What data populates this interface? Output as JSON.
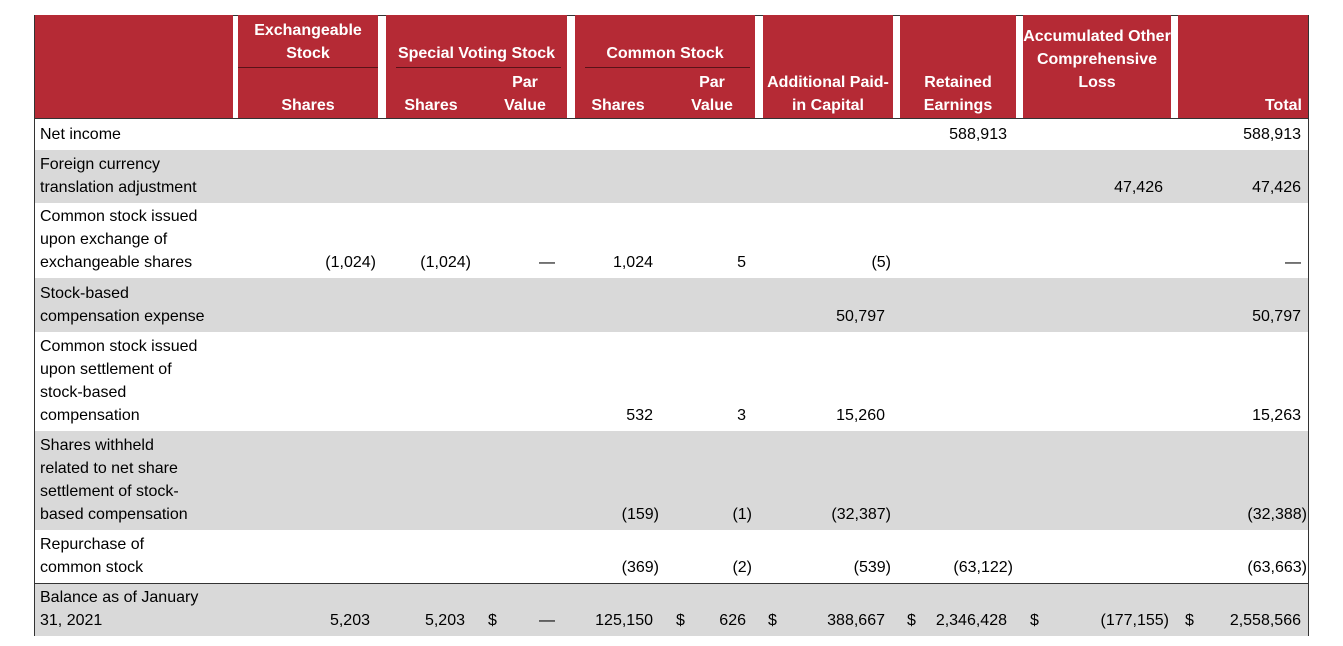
{
  "header": {
    "exchangeable_stock": "Exchangeable Stock",
    "special_voting_stock": "Special Voting Stock",
    "common_stock": "Common Stock",
    "shares": "Shares",
    "par_value": "Par Value",
    "apic": "Additional Paid-in Capital",
    "retained_earnings": "Retained Earnings",
    "aocl": "Accumulated Other Comprehensive Loss",
    "total": "Total"
  },
  "colors": {
    "header_bg": "#b52a35",
    "stripe": "#d9d9d9"
  },
  "currency_symbol": "$",
  "rows": [
    {
      "label": "Net income",
      "values": [
        "",
        "",
        "",
        "",
        "",
        "",
        "588,913",
        "",
        "588,913"
      ],
      "shade": false
    },
    {
      "label": "Foreign currency\ntranslation adjustment",
      "values": [
        "",
        "",
        "",
        "",
        "",
        "",
        "",
        "47,426",
        "47,426"
      ],
      "shade": true
    },
    {
      "label": "Common stock issued\nupon exchange of\nexchangeable shares",
      "values": [
        "(1,024)",
        "(1,024)",
        "—",
        "1,024",
        "5",
        "(5)",
        "",
        "",
        "—"
      ],
      "shade": false
    },
    {
      "label": "Stock-based\ncompensation expense",
      "values": [
        "",
        "",
        "",
        "",
        "",
        "50,797",
        "",
        "",
        "50,797"
      ],
      "shade": true
    },
    {
      "label": "Common stock issued\nupon settlement of\nstock-based\ncompensation",
      "values": [
        "",
        "",
        "",
        "532",
        "3",
        "15,260",
        "",
        "",
        "15,263"
      ],
      "shade": false
    },
    {
      "label": "Shares withheld\nrelated to net share\nsettlement of stock-\nbased compensation",
      "values": [
        "",
        "",
        "",
        "(159)",
        "(1)",
        "(32,387)",
        "",
        "",
        "(32,388)"
      ],
      "shade": true
    },
    {
      "label": "Repurchase of\ncommon stock",
      "values": [
        "",
        "",
        "",
        "(369)",
        "(2)",
        "(539)",
        "(63,122)",
        "",
        "(63,663)"
      ],
      "shade": false
    },
    {
      "label": "Balance as of January\n31, 2021",
      "values": [
        "5,203",
        "5,203",
        "—",
        "125,150",
        "626",
        "388,667",
        "2,346,428",
        "(177,155)",
        "2,558,566"
      ],
      "shade": true,
      "dollar_columns": [
        2,
        4,
        5,
        6,
        7,
        8
      ]
    }
  ]
}
